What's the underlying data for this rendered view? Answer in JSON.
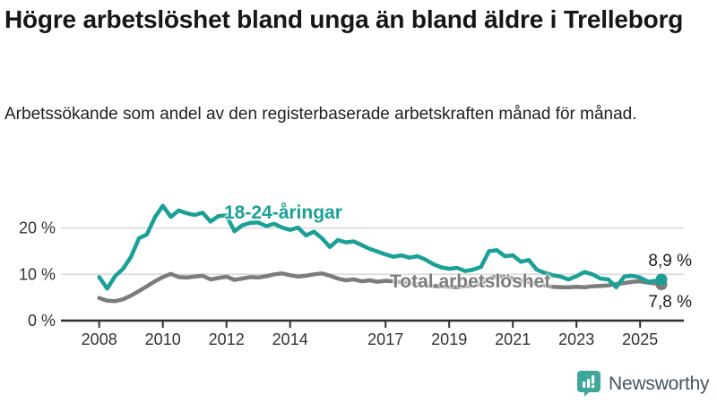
{
  "header": {
    "title": "Högre arbetslöshet bland unga än bland äldre i Trelleborg",
    "subtitle": "Arbetssökande som andel av den registerbaserade arbetskraften månad för månad."
  },
  "chart_data": {
    "type": "line",
    "title": "Högre arbetslöshet bland unga än bland äldre i Trelleborg",
    "subtitle": "Arbetssökande som andel av den registerbaserade arbetskraften månad för månad.",
    "unit": "%",
    "grid": "horizontal-only",
    "legend_position": "inline-labels",
    "x_ticks": [
      2008,
      2010,
      2012,
      2014,
      2017,
      2019,
      2021,
      2023,
      2025
    ],
    "x_tick_labels": [
      "2008",
      "2010",
      "2012",
      "2014",
      "2017",
      "2019",
      "2021",
      "2023",
      "2025"
    ],
    "y_ticks": [
      0,
      10,
      20
    ],
    "y_tick_labels": [
      "0 %",
      "10 %",
      "20 %"
    ],
    "x_range_years": [
      2006.8,
      2026.4
    ],
    "y_range_percent": [
      0,
      26
    ],
    "x": [
      2008,
      2008.25,
      2008.5,
      2008.75,
      2009,
      2009.25,
      2009.5,
      2009.75,
      2010,
      2010.25,
      2010.5,
      2010.75,
      2011,
      2011.25,
      2011.5,
      2011.75,
      2012,
      2012.25,
      2012.5,
      2012.75,
      2013,
      2013.25,
      2013.5,
      2013.75,
      2014,
      2014.25,
      2014.5,
      2014.75,
      2015,
      2015.25,
      2015.5,
      2015.75,
      2016,
      2016.25,
      2016.5,
      2016.75,
      2017,
      2017.25,
      2017.5,
      2017.75,
      2018,
      2018.25,
      2018.5,
      2018.75,
      2019,
      2019.25,
      2019.5,
      2019.75,
      2020,
      2020.25,
      2020.5,
      2020.75,
      2021,
      2021.25,
      2021.5,
      2021.75,
      2022,
      2022.25,
      2022.5,
      2022.75,
      2023,
      2023.25,
      2023.5,
      2023.75,
      2024,
      2024.25,
      2024.5,
      2024.75,
      2025,
      2025.25,
      2025.5,
      2025.67
    ],
    "series": [
      {
        "name": "18-24-åringar",
        "color": "#1aa096",
        "end_label": "8,9 %",
        "end_value_percent": 8.9,
        "values": [
          9.4,
          6.9,
          9.6,
          11.2,
          13.8,
          17.8,
          18.6,
          22.3,
          24.8,
          22.4,
          23.8,
          23.2,
          22.8,
          23.3,
          21.4,
          22.6,
          22.7,
          19.3,
          20.6,
          21.1,
          21.2,
          20.4,
          20.9,
          20.1,
          19.6,
          20.1,
          18.4,
          19.2,
          17.8,
          15.9,
          17.4,
          16.9,
          17.1,
          16.3,
          15.5,
          14.9,
          14.3,
          13.8,
          14.1,
          13.6,
          13.9,
          13.2,
          12.2,
          11.5,
          11.2,
          11.4,
          10.7,
          11.0,
          11.6,
          15.0,
          15.2,
          13.9,
          14.1,
          12.7,
          13.1,
          11.0,
          10.3,
          9.8,
          9.5,
          8.9,
          9.6,
          10.5,
          10.0,
          9.1,
          8.9,
          7.2,
          9.5,
          9.7,
          9.3,
          8.4,
          8.6,
          8.9
        ]
      },
      {
        "name": "Total arbetslöshet",
        "color": "#7c7c7c",
        "end_label": "7,8 %",
        "end_value_percent": 7.8,
        "values": [
          4.9,
          4.3,
          4.2,
          4.6,
          5.4,
          6.4,
          7.4,
          8.5,
          9.4,
          10.1,
          9.4,
          9.3,
          9.5,
          9.7,
          8.9,
          9.2,
          9.5,
          8.8,
          9.1,
          9.4,
          9.3,
          9.6,
          10.0,
          10.2,
          9.8,
          9.5,
          9.7,
          10.0,
          10.2,
          9.7,
          9.1,
          8.7,
          8.9,
          8.5,
          8.7,
          8.4,
          8.6,
          8.5,
          8.3,
          8.1,
          7.9,
          7.7,
          7.5,
          7.4,
          7.3,
          7.2,
          7.4,
          7.6,
          7.9,
          9.1,
          9.6,
          9.4,
          9.1,
          8.7,
          8.3,
          7.9,
          7.6,
          7.3,
          7.2,
          7.2,
          7.3,
          7.2,
          7.4,
          7.5,
          7.6,
          7.9,
          8.1,
          8.4,
          8.5,
          8.2,
          8.0,
          7.8
        ]
      }
    ],
    "colors": {
      "grid": "#d8d8d8",
      "axis": "#2f2f2f",
      "tick_text": "#333333",
      "value_label": "#1d1d1d"
    }
  },
  "footer": {
    "brand": "Newsworthy",
    "brand_color": "#3fa69c",
    "text_color": "#46555e",
    "icon": "bar-chart-speech-bubble-icon"
  }
}
